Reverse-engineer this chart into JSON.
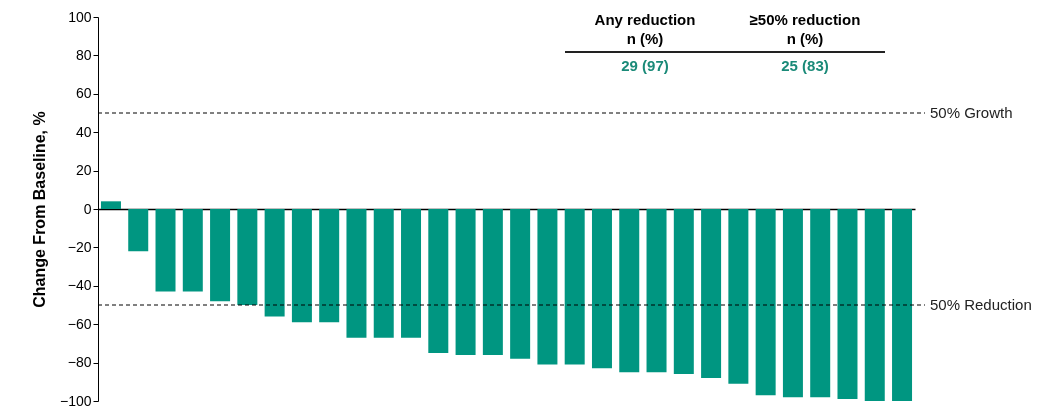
{
  "chart_data": {
    "type": "bar",
    "ylabel": "Change From Baseline, %",
    "categories": [
      null,
      null,
      null,
      null,
      null,
      null,
      null,
      null,
      null,
      null,
      null,
      null,
      null,
      null,
      null,
      null,
      null,
      null,
      null,
      null,
      null,
      null,
      null,
      null,
      null,
      null,
      null,
      null,
      null,
      null
    ],
    "values": [
      4,
      -22,
      -43,
      -43,
      -48,
      -50,
      -56,
      -59,
      -59,
      -67,
      -67,
      -67,
      -75,
      -76,
      -76,
      -78,
      -81,
      -81,
      -83,
      -85,
      -85,
      -86,
      -88,
      -91,
      -97,
      -98,
      -98,
      -99,
      -100,
      -100
    ],
    "color": "#009681",
    "ylim": [
      -100,
      100
    ],
    "yticks": [
      -100,
      -80,
      -60,
      -40,
      -20,
      0,
      20,
      40,
      60,
      80,
      100
    ],
    "ref_lines": [
      {
        "axis": "y",
        "value": 50,
        "label": "50% Growth",
        "line_style": "dashed"
      },
      {
        "axis": "y",
        "value": -50,
        "label": "50% Reduction",
        "line_style": "dashed"
      }
    ],
    "annotations": [
      "Any reduction\nn (%)",
      "≥50% reduction\nn (%)",
      "29 (97)",
      "25 (83)"
    ]
  }
}
